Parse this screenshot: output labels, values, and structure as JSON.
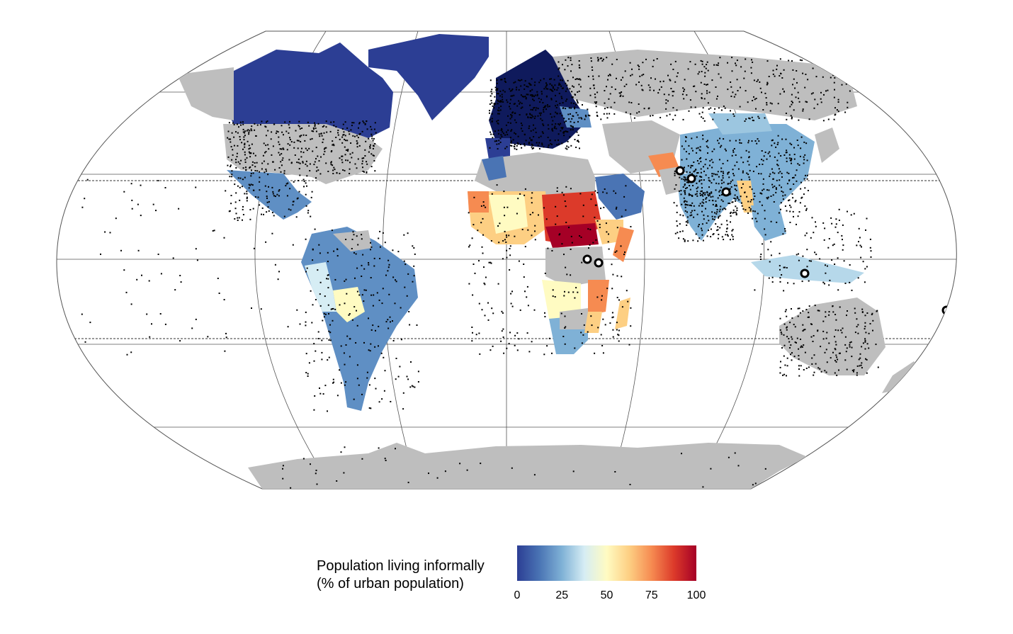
{
  "figure": {
    "projection": "Robinson",
    "background_color": "#ffffff",
    "no_data_color": "#bebebe",
    "graticule_color": "#555555"
  },
  "legend": {
    "title_line1": "Population living informally",
    "title_line2": "(% of urban population)",
    "ticks": [
      "0",
      "25",
      "50",
      "75",
      "100"
    ],
    "range": [
      0,
      100
    ],
    "colors": [
      "#2c3e94",
      "#4a74b4",
      "#7fb1d6",
      "#d6edf4",
      "#fffbc2",
      "#fdcf83",
      "#f68b51",
      "#dc3a2a",
      "#a50026"
    ]
  },
  "markers": {
    "style": "open-circle",
    "color": "#000000",
    "count": 8
  },
  "settlement_dots": {
    "color": "#000000",
    "style": "small-square-dots"
  },
  "reference_lines": {
    "tropics": "dashed"
  }
}
